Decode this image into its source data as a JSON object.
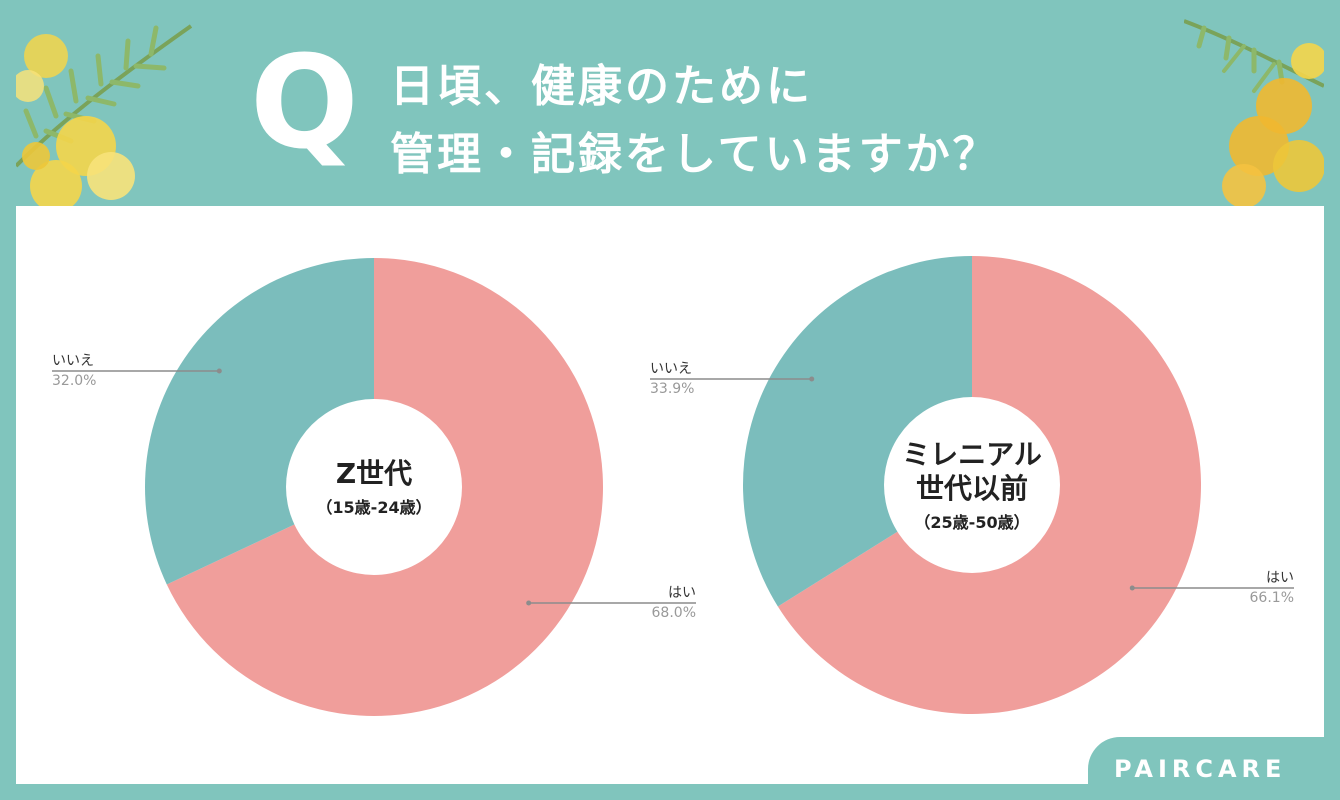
{
  "header": {
    "q_mark": "Q",
    "question_line1": "日頃、健康のために",
    "question_line2": "管理・記録をしていますか？"
  },
  "brand": {
    "name": "PAIRCARE"
  },
  "colors": {
    "background": "#80c5bd",
    "yes": "#f09e9b",
    "no": "#7bbdbc",
    "leader": "#8c8c8c",
    "label_name": "#333333",
    "label_pct": "#999999"
  },
  "chart_data": [
    {
      "type": "pie",
      "center_title": "Z世代",
      "center_sub": "（15歳-24歳）",
      "slices": [
        {
          "label": "はい",
          "value": 68.0,
          "pct_text": "68.0%",
          "color": "#f09e9b"
        },
        {
          "label": "いいえ",
          "value": 32.0,
          "pct_text": "32.0%",
          "color": "#7bbdbc"
        }
      ]
    },
    {
      "type": "pie",
      "center_title": "ミレニアル\n世代以前",
      "center_sub": "（25歳-50歳）",
      "slices": [
        {
          "label": "はい",
          "value": 66.1,
          "pct_text": "66.1%",
          "color": "#f09e9b"
        },
        {
          "label": "いいえ",
          "value": 33.9,
          "pct_text": "33.9%",
          "color": "#7bbdbc"
        }
      ]
    }
  ]
}
